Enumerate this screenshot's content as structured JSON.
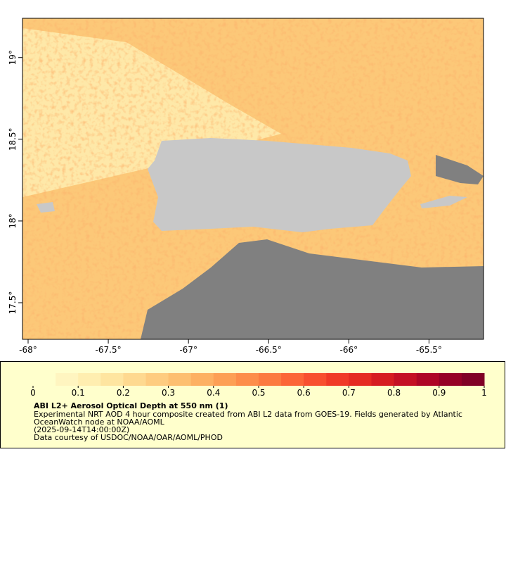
{
  "map": {
    "xlim": [
      -68.035,
      -65.16
    ],
    "ylim": [
      17.276,
      19.24
    ],
    "xticks": [
      {
        "value": -68,
        "label": "-68°"
      },
      {
        "value": -67.5,
        "label": "-67.5°"
      },
      {
        "value": -67,
        "label": "-67°"
      },
      {
        "value": -66.5,
        "label": "-66.5°"
      },
      {
        "value": -66,
        "label": "-66°"
      },
      {
        "value": -65.5,
        "label": "-65.5°"
      }
    ],
    "yticks": [
      {
        "value": 17.5,
        "label": "17.5°"
      },
      {
        "value": 18,
        "label": "18°"
      },
      {
        "value": 18.5,
        "label": "18.5°"
      },
      {
        "value": 19,
        "label": "19°"
      }
    ]
  },
  "colorbar": {
    "clim": [
      0,
      1
    ],
    "ticks": [
      0,
      0.1,
      0.2,
      0.3,
      0.4,
      0.5,
      0.6,
      0.7,
      0.8,
      0.9,
      1
    ],
    "colors": [
      "#ffffcc",
      "#fff5c0",
      "#ffeeb0",
      "#fee5a0",
      "#fed990",
      "#fecc80",
      "#fdbf70",
      "#fdb062",
      "#fd9f55",
      "#fd8d4a",
      "#fc7a40",
      "#fc6537",
      "#f84f2f",
      "#f03a27",
      "#e52a22",
      "#d61c21",
      "#c40f24",
      "#ae0526",
      "#960026",
      "#800026"
    ]
  },
  "caption": {
    "title": "ABI L2+ Aerosol Optical Depth at 550 nm (1)",
    "lines": [
      "Experimental NRT AOD 4 hour composite created from ABI L2 data from GOES-19. Fields generated by Atlantic",
      "OceanWatch node at NOAA/AOML",
      "(2025-09-14T14:00:00Z)",
      "Data courtesy of USDOC/NOAA/OAR/AOML/PHOD"
    ]
  }
}
